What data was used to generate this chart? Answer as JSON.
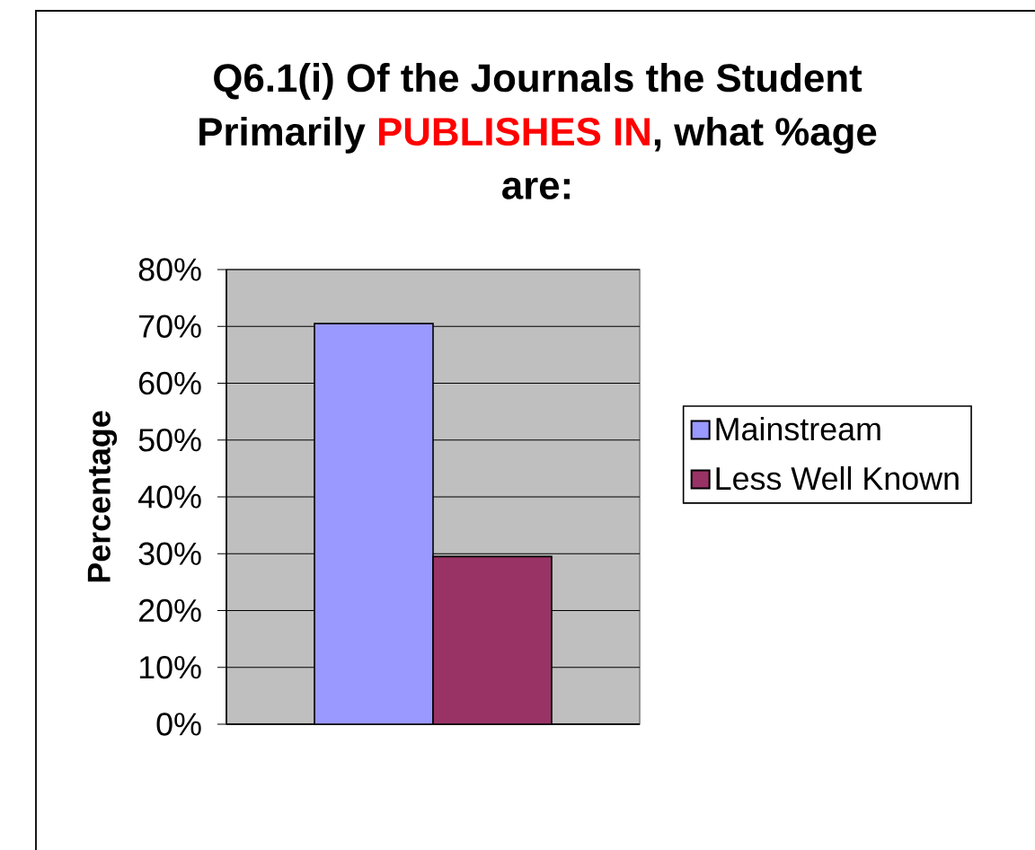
{
  "chart_data": {
    "type": "bar",
    "title": "Q6.1(i) Of the Journals the Student Primarily **PUBLISHES IN**, what %age are:",
    "ylabel": "Percentage",
    "categories": [
      null
    ],
    "series": [
      {
        "name": "Mainstream",
        "color": "#9999ff",
        "values": [
          70.5
        ]
      },
      {
        "name": "Less Well Known",
        "color": "#993366",
        "values": [
          29.5
        ]
      }
    ],
    "ylim": [
      0,
      80
    ],
    "yticks": [
      {
        "value": 0,
        "label": "0%"
      },
      {
        "value": 10,
        "label": "10%"
      },
      {
        "value": 20,
        "label": "20%"
      },
      {
        "value": 30,
        "label": "30%"
      },
      {
        "value": 40,
        "label": "40%"
      },
      {
        "value": 50,
        "label": "50%"
      },
      {
        "value": 60,
        "label": "60%"
      },
      {
        "value": 70,
        "label": "70%"
      },
      {
        "value": 80,
        "label": "80%"
      }
    ],
    "grid": "y",
    "legend": "right"
  }
}
